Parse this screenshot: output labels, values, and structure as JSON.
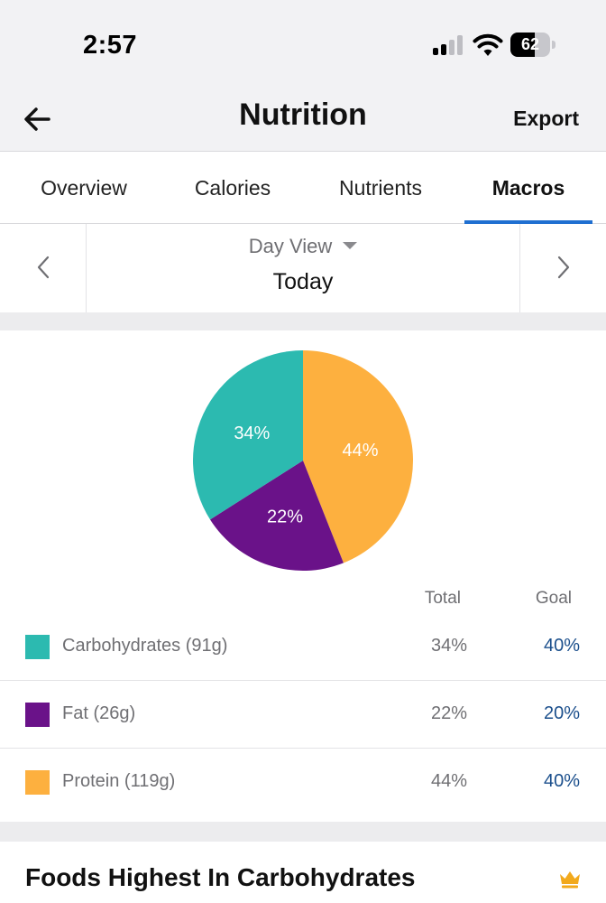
{
  "status_bar": {
    "time": "2:57",
    "battery": "62",
    "battery_level": 0.62
  },
  "nav": {
    "title": "Nutrition",
    "export_label": "Export"
  },
  "tabs": [
    {
      "label": "Overview",
      "active": false
    },
    {
      "label": "Calories",
      "active": false
    },
    {
      "label": "Nutrients",
      "active": false
    },
    {
      "label": "Macros",
      "active": true
    }
  ],
  "date_selector": {
    "view": "Day View",
    "date": "Today"
  },
  "chart_data": {
    "type": "pie",
    "title": "",
    "slices": [
      {
        "label": "Protein",
        "value": 44,
        "display": "44%",
        "color": "#fdb03f"
      },
      {
        "label": "Fat",
        "value": 22,
        "display": "22%",
        "color": "#6a1289"
      },
      {
        "label": "Carbohydrates",
        "value": 34,
        "display": "34%",
        "color": "#2cbab0"
      }
    ]
  },
  "table": {
    "headers": {
      "total": "Total",
      "goal": "Goal"
    },
    "rows": [
      {
        "label": "Carbohydrates (91g)",
        "total": "34%",
        "goal": "40%",
        "color": "#2cbab0"
      },
      {
        "label": "Fat (26g)",
        "total": "22%",
        "goal": "20%",
        "color": "#6a1289"
      },
      {
        "label": "Protein (119g)",
        "total": "44%",
        "goal": "40%",
        "color": "#fdb03f"
      }
    ]
  },
  "foods_section": {
    "title": "Foods Highest In Carbohydrates",
    "icon": "crown-icon",
    "icon_color": "#f2a91c"
  }
}
